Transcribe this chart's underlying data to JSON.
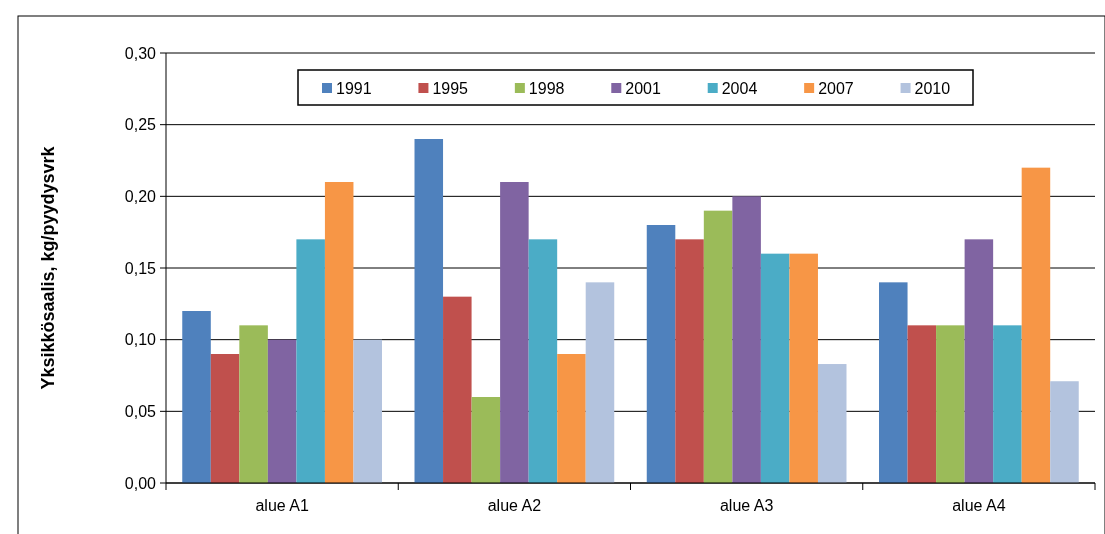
{
  "chart_data": {
    "type": "bar",
    "ylabel": "Yksikkösaalis, kg/pyydysvrk",
    "categories": [
      "alue A1",
      "alue A2",
      "alue A3",
      "alue A4"
    ],
    "series": [
      {
        "name": "1991",
        "color": "#4f81bd",
        "values": [
          0.12,
          0.24,
          0.18,
          0.14
        ]
      },
      {
        "name": "1995",
        "color": "#c0504d",
        "values": [
          0.09,
          0.13,
          0.17,
          0.11
        ]
      },
      {
        "name": "1998",
        "color": "#9bbb59",
        "values": [
          0.11,
          0.06,
          0.19,
          0.11
        ]
      },
      {
        "name": "2001",
        "color": "#8064a2",
        "values": [
          0.1,
          0.21,
          0.2,
          0.17
        ]
      },
      {
        "name": "2004",
        "color": "#4bacc6",
        "values": [
          0.17,
          0.17,
          0.16,
          0.11
        ]
      },
      {
        "name": "2007",
        "color": "#f79646",
        "values": [
          0.21,
          0.09,
          0.16,
          0.22
        ]
      },
      {
        "name": "2010",
        "color": "#b3c3de",
        "values": [
          0.1,
          0.14,
          0.083,
          0.071
        ]
      }
    ],
    "ylim": [
      0,
      0.3
    ],
    "yticks": [
      {
        "value": 0,
        "label": "0,00"
      },
      {
        "value": 0.05,
        "label": "0,05"
      },
      {
        "value": 0.1,
        "label": "0,10"
      },
      {
        "value": 0.15,
        "label": "0,15"
      },
      {
        "value": 0.2,
        "label": "0,20"
      },
      {
        "value": 0.25,
        "label": "0,25"
      },
      {
        "value": 0.3,
        "label": "0,30"
      }
    ],
    "grid": "y",
    "legend": "top"
  }
}
